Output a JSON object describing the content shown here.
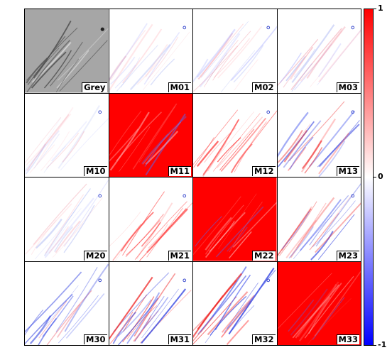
{
  "figure": {
    "panels": [
      {
        "label": "Grey",
        "kind": "grey"
      },
      {
        "label": "M01",
        "kind": "sparse",
        "intensity": 0.35
      },
      {
        "label": "M02",
        "kind": "sparse",
        "intensity": 0.45
      },
      {
        "label": "M03",
        "kind": "sparse",
        "intensity": 0.5
      },
      {
        "label": "M10",
        "kind": "sparse",
        "intensity": 0.3
      },
      {
        "label": "M11",
        "kind": "dense"
      },
      {
        "label": "M12",
        "kind": "mixed-red",
        "intensity": 0.7
      },
      {
        "label": "M13",
        "kind": "mixed",
        "intensity": 0.6
      },
      {
        "label": "M20",
        "kind": "sparse",
        "intensity": 0.35
      },
      {
        "label": "M21",
        "kind": "mixed-red",
        "intensity": 0.7
      },
      {
        "label": "M22",
        "kind": "dense"
      },
      {
        "label": "M23",
        "kind": "mixed",
        "intensity": 0.6
      },
      {
        "label": "M30",
        "kind": "sparse-blue",
        "intensity": 0.6
      },
      {
        "label": "M31",
        "kind": "mixed",
        "intensity": 0.75
      },
      {
        "label": "M32",
        "kind": "mixed",
        "intensity": 0.75
      },
      {
        "label": "M33",
        "kind": "dense"
      }
    ],
    "colorbar": {
      "ticks": [
        "1",
        "0",
        "-1"
      ],
      "colors": {
        "max": "#ff0000",
        "mid": "#ffffff",
        "min": "#0000ff"
      }
    }
  }
}
